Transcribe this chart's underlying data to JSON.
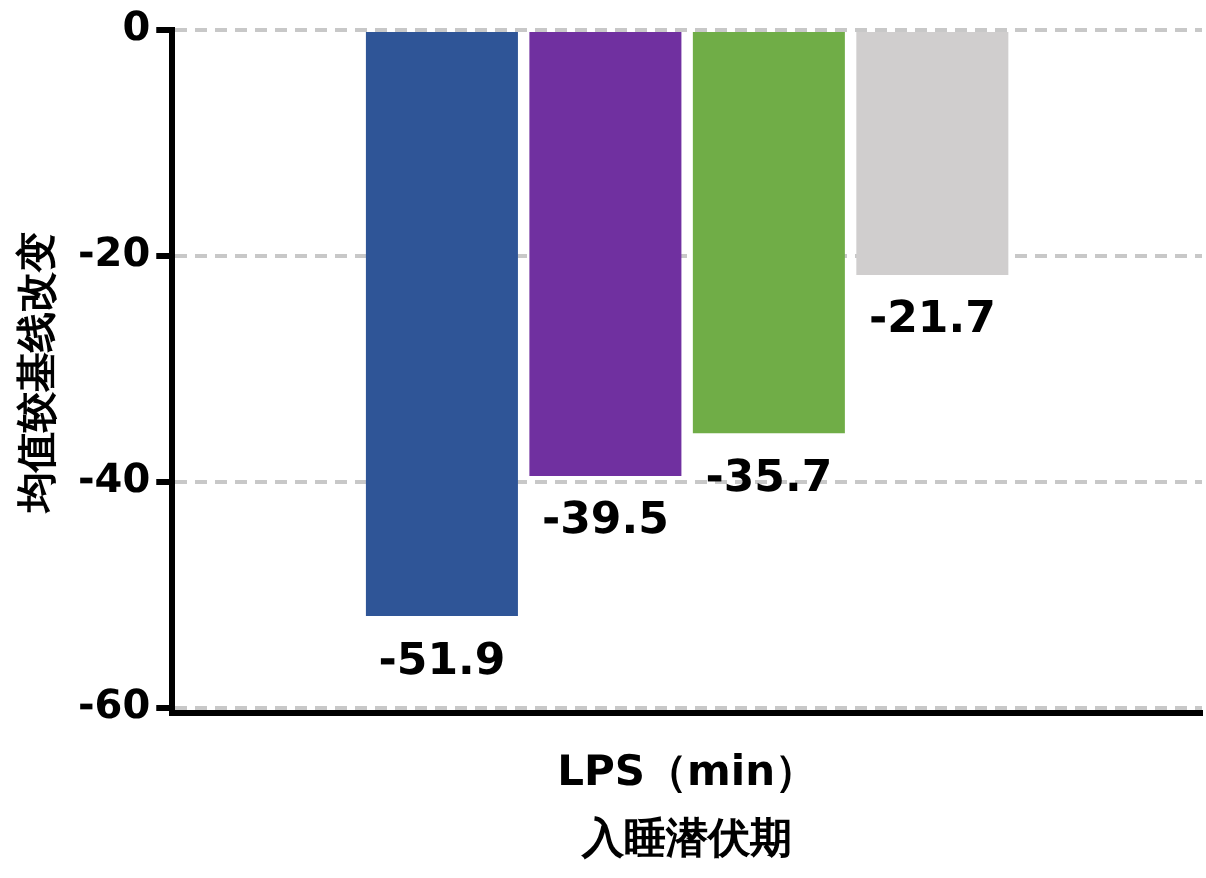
{
  "chart_data": {
    "type": "bar",
    "ylabel": "均值较基线改变",
    "xlabel": "入睡潜伏期",
    "categories": [
      "LPS（min）"
    ],
    "series": [
      {
        "color": "#2f5597",
        "values": [
          -51.9
        ]
      },
      {
        "color": "#7030a0",
        "values": [
          -39.5
        ]
      },
      {
        "color": "#70ad47",
        "values": [
          -35.7
        ]
      },
      {
        "color": "#d0cece",
        "values": [
          -21.7
        ]
      }
    ],
    "ylim": [
      -60.5,
      0
    ],
    "yticks": [
      -60,
      -40,
      -20,
      0
    ],
    "grid": "y",
    "legend": false,
    "data_labels": true
  }
}
